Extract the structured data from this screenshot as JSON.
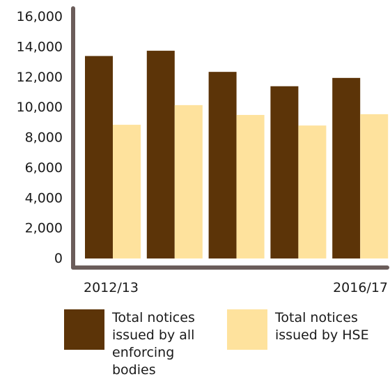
{
  "chart_data": {
    "type": "bar",
    "categories": [
      "2012/13",
      "",
      "",
      "",
      "2016/17"
    ],
    "series": [
      {
        "name": "Total notices issued by all enforcing bodies",
        "color": "#5c3408",
        "values": [
          13400,
          13750,
          12350,
          11400,
          11950
        ]
      },
      {
        "name": "Total notices issued by HSE",
        "color": "#fee29d",
        "values": [
          8850,
          10150,
          9500,
          8800,
          9550
        ]
      }
    ],
    "yticks": [
      "0",
      "2,000",
      "4,000",
      "6,000",
      "8,000",
      "10,000",
      "12,000",
      "14,000",
      "16,000"
    ],
    "ylim": [
      0,
      16000
    ],
    "axis_color": "#6b5d5a",
    "grid": false,
    "legend_position": "bottom"
  },
  "legend": {
    "item1": [
      "Total notices",
      "issued by all",
      "enforcing",
      "bodies"
    ],
    "item2": [
      "Total notices",
      "issued by HSE"
    ]
  }
}
